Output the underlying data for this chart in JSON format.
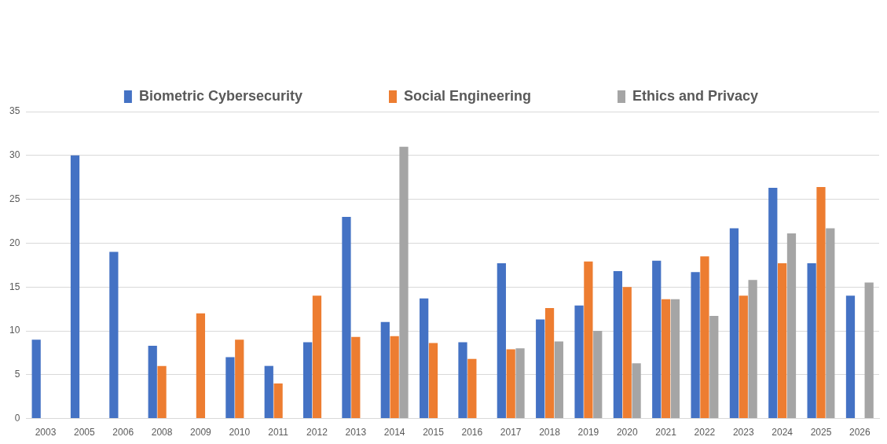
{
  "chart_data": {
    "type": "bar",
    "categories": [
      "2003",
      "2005",
      "2006",
      "2008",
      "2009",
      "2010",
      "2011",
      "2012",
      "2013",
      "2014",
      "2015",
      "2016",
      "2017",
      "2018",
      "2019",
      "2020",
      "2021",
      "2022",
      "2023",
      "2024",
      "2025",
      "2026"
    ],
    "series": [
      {
        "name": "Biometric Cybersecurity",
        "color": "#4472c4",
        "values": [
          9,
          30,
          19,
          8.3,
          null,
          7,
          6,
          8.7,
          23,
          11,
          13.7,
          8.7,
          17.7,
          11.3,
          12.9,
          16.8,
          18,
          16.7,
          21.7,
          26.3,
          17.7,
          14
        ]
      },
      {
        "name": "Social Engineering",
        "color": "#ed7d31",
        "values": [
          null,
          null,
          null,
          6,
          12,
          9,
          4,
          14,
          9.3,
          9.4,
          8.6,
          6.8,
          7.9,
          12.6,
          17.9,
          15,
          13.6,
          18.5,
          14,
          17.7,
          26.4,
          null
        ]
      },
      {
        "name": "Ethics and Privacy",
        "color": "#a5a5a5",
        "values": [
          null,
          null,
          null,
          null,
          null,
          null,
          null,
          null,
          null,
          31,
          null,
          null,
          8,
          8.8,
          10,
          6.3,
          13.6,
          11.7,
          15.8,
          21.1,
          21.7,
          15.5
        ]
      }
    ],
    "ylim": [
      0,
      35
    ],
    "yticks": [
      0,
      5,
      10,
      15,
      20,
      25,
      30,
      35
    ],
    "grid": "y",
    "legend": "top"
  }
}
